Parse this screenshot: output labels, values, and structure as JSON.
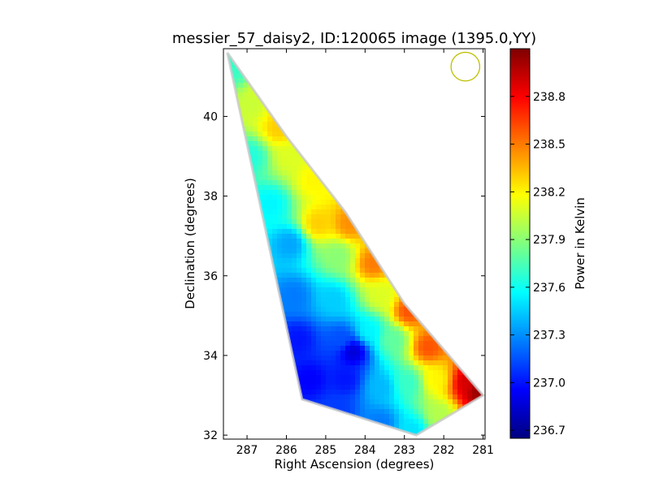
{
  "chart_data": {
    "type": "heatmap",
    "title": "messier_57_daisy2, ID:120065 image (1395.0,YY)",
    "xlabel": "Right Ascension (degrees)",
    "ylabel": "Declination (degrees)",
    "xlim": [
      287.6,
      280.95
    ],
    "ylim": [
      31.9,
      41.7
    ],
    "x_ticks": [
      "287",
      "286",
      "285",
      "284",
      "283",
      "282",
      "281"
    ],
    "x_tick_values": [
      287,
      286,
      285,
      284,
      283,
      282,
      281
    ],
    "y_ticks": [
      "32",
      "34",
      "36",
      "38",
      "40"
    ],
    "y_tick_values": [
      32,
      34,
      36,
      38,
      40
    ],
    "colorbar": {
      "label": "Power in Kelvin",
      "range": [
        236.65,
        239.1
      ],
      "ticks": [
        "236.7",
        "237.0",
        "237.3",
        "237.6",
        "237.9",
        "238.2",
        "238.5",
        "238.8"
      ],
      "tick_values": [
        236.7,
        237.0,
        237.3,
        237.6,
        237.9,
        238.2,
        238.5,
        238.8
      ],
      "colormap": "jet"
    },
    "coverage_region": [
      [
        287.5,
        41.6
      ],
      [
        286.0,
        39.5
      ],
      [
        284.5,
        37.6
      ],
      [
        283.0,
        35.3
      ],
      [
        281.0,
        33.0
      ],
      [
        282.7,
        32.0
      ],
      [
        285.6,
        32.9
      ]
    ],
    "field_samples": [
      {
        "ra": 287.4,
        "dec": 41.2,
        "value": 237.7
      },
      {
        "ra": 286.8,
        "dec": 40.3,
        "value": 238.05
      },
      {
        "ra": 286.2,
        "dec": 39.7,
        "value": 238.3
      },
      {
        "ra": 286.9,
        "dec": 39.0,
        "value": 237.65
      },
      {
        "ra": 285.9,
        "dec": 39.0,
        "value": 238.1
      },
      {
        "ra": 285.3,
        "dec": 38.4,
        "value": 238.2
      },
      {
        "ra": 286.4,
        "dec": 37.8,
        "value": 237.55
      },
      {
        "ra": 285.2,
        "dec": 37.3,
        "value": 238.3
      },
      {
        "ra": 284.4,
        "dec": 37.3,
        "value": 238.45
      },
      {
        "ra": 285.9,
        "dec": 36.8,
        "value": 237.35
      },
      {
        "ra": 284.7,
        "dec": 36.5,
        "value": 237.9
      },
      {
        "ra": 283.8,
        "dec": 36.3,
        "value": 238.5
      },
      {
        "ra": 285.8,
        "dec": 35.5,
        "value": 237.25
      },
      {
        "ra": 284.8,
        "dec": 35.4,
        "value": 237.45
      },
      {
        "ra": 283.6,
        "dec": 35.5,
        "value": 238.1
      },
      {
        "ra": 282.9,
        "dec": 35.1,
        "value": 238.6
      },
      {
        "ra": 285.7,
        "dec": 34.4,
        "value": 237.0
      },
      {
        "ra": 284.6,
        "dec": 34.4,
        "value": 237.15
      },
      {
        "ra": 283.9,
        "dec": 34.6,
        "value": 237.55
      },
      {
        "ra": 283.3,
        "dec": 34.4,
        "value": 237.8
      },
      {
        "ra": 282.4,
        "dec": 34.2,
        "value": 238.6
      },
      {
        "ra": 285.4,
        "dec": 33.4,
        "value": 236.95
      },
      {
        "ra": 284.5,
        "dec": 33.4,
        "value": 237.0
      },
      {
        "ra": 283.6,
        "dec": 33.2,
        "value": 237.4
      },
      {
        "ra": 282.9,
        "dec": 33.3,
        "value": 237.7
      },
      {
        "ra": 282.2,
        "dec": 33.4,
        "value": 238.2
      },
      {
        "ra": 281.4,
        "dec": 33.3,
        "value": 238.9
      },
      {
        "ra": 281.1,
        "dec": 33.1,
        "value": 239.05
      },
      {
        "ra": 284.7,
        "dec": 32.6,
        "value": 237.1
      },
      {
        "ra": 283.6,
        "dec": 32.3,
        "value": 237.25
      },
      {
        "ra": 282.8,
        "dec": 32.1,
        "value": 237.5
      },
      {
        "ra": 282.1,
        "dec": 32.5,
        "value": 238.0
      },
      {
        "ra": 284.3,
        "dec": 34.1,
        "value": 236.85
      },
      {
        "ra": 286.2,
        "dec": 40.5,
        "value": 238.4
      }
    ],
    "beam_circle": {
      "ra": 281.45,
      "dec": 41.25,
      "radius_deg": 0.36,
      "color": "#bfbf00"
    },
    "grid": false
  }
}
